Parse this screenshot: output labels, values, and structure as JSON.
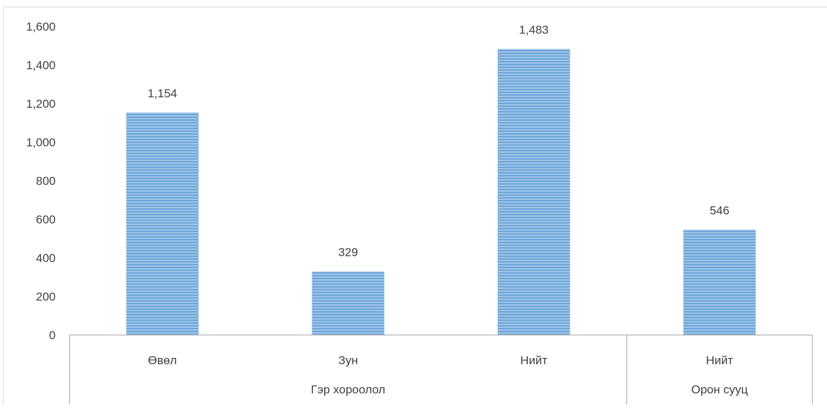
{
  "chart_data": {
    "type": "bar",
    "categories": [
      "Өвөл",
      "Зун",
      "Нийт",
      "Нийт"
    ],
    "groups": [
      {
        "label": "Гэр хороолол",
        "span": 3
      },
      {
        "label": "Орон сууц",
        "span": 1
      }
    ],
    "values": [
      1154,
      329,
      1483,
      546
    ],
    "data_labels": [
      "1,154",
      "329",
      "1,483",
      "546"
    ],
    "y_ticks": [
      "0",
      "200",
      "400",
      "600",
      "800",
      "1,000",
      "1,200",
      "1,400",
      "1,600"
    ],
    "ylim": [
      0,
      1600
    ],
    "grid": false,
    "legend": "none",
    "bar_color": "#9dc3e6",
    "bar_stripe_color": "#5b9bd5"
  }
}
